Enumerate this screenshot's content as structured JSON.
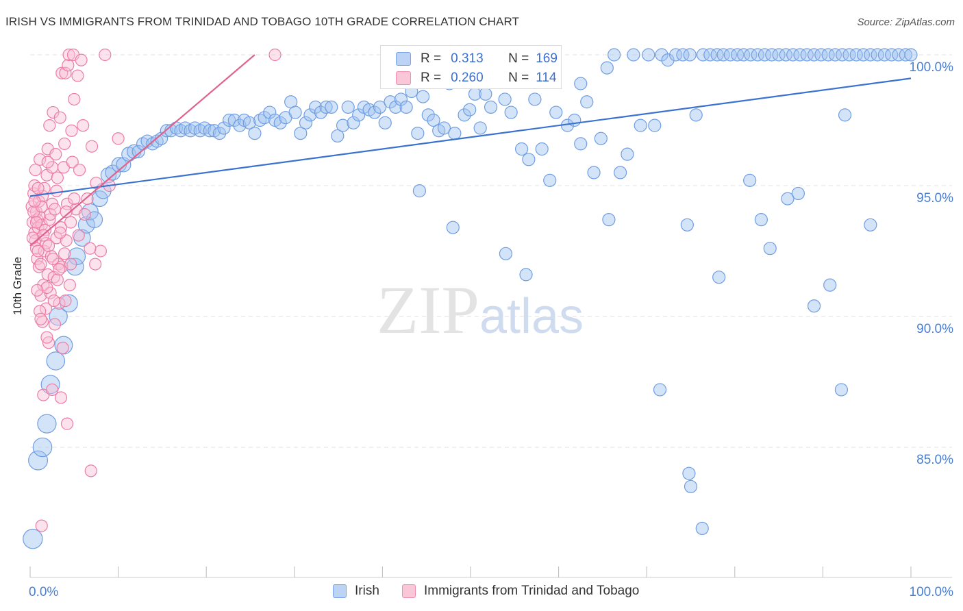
{
  "header": {
    "title": "IRISH VS IMMIGRANTS FROM TRINIDAD AND TOBAGO 10TH GRADE CORRELATION CHART",
    "source": "Source: ZipAtlas.com"
  },
  "watermark": {
    "zip": "ZIP",
    "atlas": "atlas"
  },
  "legend_box": {
    "rows": [
      {
        "r_label": "R =",
        "r_value": "0.313",
        "n_label": "N =",
        "n_value": "169",
        "color": "#7aa6e6",
        "fill": "#bcd3f5"
      },
      {
        "r_label": "R =",
        "r_value": "0.260",
        "n_label": "N =",
        "n_value": "114",
        "color": "#f08fb0",
        "fill": "#f9c7d8"
      }
    ]
  },
  "legend_bottom": {
    "items": [
      {
        "label": "Irish",
        "color": "#7aa6e6",
        "fill": "#bcd3f5"
      },
      {
        "label": "Immigrants from Trinidad and Tobago",
        "color": "#f08fb0",
        "fill": "#f9c7d8"
      }
    ]
  },
  "chart_data": {
    "type": "scatter",
    "title": "IRISH VS IMMIGRANTS FROM TRINIDAD AND TOBAGO 10TH GRADE CORRELATION CHART",
    "xlabel": "",
    "ylabel": "10th Grade",
    "xlim": [
      0,
      100
    ],
    "ylim": [
      80.5,
      101.5
    ],
    "x_tick_labels": [
      "0.0%",
      "100.0%"
    ],
    "y_ticks": [
      {
        "value": 100,
        "label": "100.0%"
      },
      {
        "value": 95,
        "label": "95.0%"
      },
      {
        "value": 90,
        "label": "90.0%"
      },
      {
        "value": 85,
        "label": "85.0%"
      }
    ],
    "series": [
      {
        "name": "Irish",
        "color": "#6f9de3",
        "fill": "rgba(160,195,240,0.45)",
        "trendline": {
          "x": [
            0,
            100
          ],
          "y": [
            94.6,
            99.1
          ]
        },
        "points": [
          [
            0.3,
            81.5
          ],
          [
            0.9,
            84.5
          ],
          [
            1.4,
            85.0
          ],
          [
            1.9,
            85.9
          ],
          [
            2.3,
            87.4
          ],
          [
            2.9,
            88.3
          ],
          [
            3.2,
            90.0
          ],
          [
            3.8,
            88.9
          ],
          [
            4.4,
            90.5
          ],
          [
            5.1,
            91.9
          ],
          [
            5.3,
            92.3
          ],
          [
            5.9,
            93.0
          ],
          [
            6.4,
            93.5
          ],
          [
            6.8,
            94.0
          ],
          [
            7.3,
            93.7
          ],
          [
            7.9,
            94.5
          ],
          [
            8.3,
            94.8
          ],
          [
            8.9,
            95.4
          ],
          [
            9.4,
            95.5
          ],
          [
            10.1,
            95.8
          ],
          [
            10.6,
            95.8
          ],
          [
            11.2,
            96.2
          ],
          [
            11.8,
            96.3
          ],
          [
            12.3,
            96.3
          ],
          [
            12.8,
            96.6
          ],
          [
            13.3,
            96.7
          ],
          [
            13.9,
            96.6
          ],
          [
            14.4,
            96.7
          ],
          [
            14.9,
            96.8
          ],
          [
            15.5,
            97.1
          ],
          [
            16.0,
            97.1
          ],
          [
            16.6,
            97.2
          ],
          [
            17.1,
            97.1
          ],
          [
            17.6,
            97.2
          ],
          [
            18.2,
            97.1
          ],
          [
            18.7,
            97.2
          ],
          [
            19.3,
            97.1
          ],
          [
            19.8,
            97.2
          ],
          [
            20.4,
            97.1
          ],
          [
            20.9,
            97.1
          ],
          [
            21.5,
            97.0
          ],
          [
            22.0,
            97.2
          ],
          [
            22.6,
            97.5
          ],
          [
            23.2,
            97.5
          ],
          [
            23.8,
            97.3
          ],
          [
            24.3,
            97.5
          ],
          [
            24.9,
            97.4
          ],
          [
            25.5,
            97.0
          ],
          [
            26.1,
            97.5
          ],
          [
            26.6,
            97.6
          ],
          [
            27.2,
            97.8
          ],
          [
            27.8,
            97.5
          ],
          [
            28.4,
            97.4
          ],
          [
            29.0,
            97.6
          ],
          [
            29.6,
            98.2
          ],
          [
            30.1,
            97.8
          ],
          [
            30.7,
            97.0
          ],
          [
            31.3,
            97.4
          ],
          [
            31.8,
            97.7
          ],
          [
            32.4,
            98.0
          ],
          [
            33.0,
            97.8
          ],
          [
            33.6,
            98.0
          ],
          [
            34.2,
            98.0
          ],
          [
            34.9,
            96.9
          ],
          [
            35.5,
            97.3
          ],
          [
            36.1,
            98.0
          ],
          [
            36.7,
            97.4
          ],
          [
            37.3,
            97.7
          ],
          [
            37.9,
            98.0
          ],
          [
            38.5,
            97.9
          ],
          [
            39.1,
            97.8
          ],
          [
            39.7,
            98.0
          ],
          [
            40.3,
            97.4
          ],
          [
            40.9,
            98.2
          ],
          [
            41.5,
            98.0
          ],
          [
            42.1,
            98.3
          ],
          [
            42.7,
            98.0
          ],
          [
            43.3,
            98.6
          ],
          [
            44.0,
            97.0
          ],
          [
            44.6,
            98.4
          ],
          [
            45.2,
            97.7
          ],
          [
            45.8,
            97.5
          ],
          [
            46.4,
            97.1
          ],
          [
            47.0,
            97.2
          ],
          [
            47.6,
            98.9
          ],
          [
            48.2,
            97.0
          ],
          [
            49.3,
            97.7
          ],
          [
            49.9,
            97.9
          ],
          [
            50.5,
            98.5
          ],
          [
            51.1,
            97.2
          ],
          [
            51.7,
            98.5
          ],
          [
            52.3,
            98.0
          ],
          [
            53.1,
            99.5
          ],
          [
            53.9,
            98.3
          ],
          [
            54.6,
            97.8
          ],
          [
            55.2,
            99.5
          ],
          [
            55.8,
            96.4
          ],
          [
            56.6,
            96.0
          ],
          [
            57.3,
            98.3
          ],
          [
            58.1,
            96.4
          ],
          [
            59.0,
            95.2
          ],
          [
            59.7,
            97.8
          ],
          [
            61.0,
            97.3
          ],
          [
            61.8,
            97.5
          ],
          [
            62.5,
            96.6
          ],
          [
            63.2,
            98.2
          ],
          [
            64.0,
            95.5
          ],
          [
            64.8,
            96.8
          ],
          [
            65.5,
            99.5
          ],
          [
            66.3,
            100.0
          ],
          [
            67.0,
            95.5
          ],
          [
            67.8,
            96.2
          ],
          [
            68.5,
            100.0
          ],
          [
            69.3,
            97.3
          ],
          [
            70.2,
            100.0
          ],
          [
            70.9,
            97.3
          ],
          [
            71.7,
            100.0
          ],
          [
            72.4,
            99.8
          ],
          [
            73.3,
            100.0
          ],
          [
            74.1,
            100.0
          ],
          [
            74.9,
            100.0
          ],
          [
            75.6,
            97.7
          ],
          [
            76.4,
            100.0
          ],
          [
            77.2,
            100.0
          ],
          [
            78.0,
            100.0
          ],
          [
            78.7,
            100.0
          ],
          [
            79.5,
            100.0
          ],
          [
            80.3,
            100.0
          ],
          [
            81.0,
            100.0
          ],
          [
            81.8,
            100.0
          ],
          [
            82.6,
            100.0
          ],
          [
            83.4,
            100.0
          ],
          [
            84.2,
            100.0
          ],
          [
            85.0,
            100.0
          ],
          [
            85.8,
            100.0
          ],
          [
            86.6,
            100.0
          ],
          [
            87.4,
            100.0
          ],
          [
            88.2,
            100.0
          ],
          [
            89.0,
            100.0
          ],
          [
            89.8,
            100.0
          ],
          [
            90.6,
            100.0
          ],
          [
            91.4,
            100.0
          ],
          [
            92.2,
            100.0
          ],
          [
            93.0,
            100.0
          ],
          [
            93.8,
            100.0
          ],
          [
            94.6,
            100.0
          ],
          [
            95.4,
            100.0
          ],
          [
            96.2,
            100.0
          ],
          [
            97.0,
            100.0
          ],
          [
            97.8,
            100.0
          ],
          [
            98.6,
            100.0
          ],
          [
            99.4,
            100.0
          ],
          [
            100.0,
            100.0
          ],
          [
            62.5,
            98.9
          ],
          [
            54.0,
            92.4
          ],
          [
            48.0,
            93.4
          ],
          [
            44.2,
            94.8
          ],
          [
            71.5,
            87.2
          ],
          [
            74.8,
            84.0
          ],
          [
            76.3,
            81.9
          ],
          [
            75.0,
            83.5
          ],
          [
            92.5,
            97.7
          ],
          [
            56.3,
            91.6
          ],
          [
            65.7,
            93.7
          ],
          [
            74.6,
            93.5
          ],
          [
            78.2,
            91.5
          ],
          [
            81.7,
            95.2
          ],
          [
            83.0,
            93.7
          ],
          [
            84.0,
            92.6
          ],
          [
            86.0,
            94.5
          ],
          [
            87.2,
            94.7
          ],
          [
            89.0,
            90.4
          ],
          [
            90.8,
            91.2
          ],
          [
            92.1,
            87.2
          ],
          [
            95.4,
            93.5
          ]
        ]
      },
      {
        "name": "Immigrants from Trinidad and Tobago",
        "color": "#ec7ca5",
        "fill": "rgba(248,190,212,0.45)",
        "trendline": {
          "x": [
            0,
            25.5
          ],
          "y": [
            92.7,
            100.0
          ]
        },
        "points": [
          [
            0.2,
            94.2
          ],
          [
            0.3,
            93.6
          ],
          [
            0.4,
            94.7
          ],
          [
            0.5,
            95.0
          ],
          [
            0.5,
            93.2
          ],
          [
            0.6,
            92.9
          ],
          [
            0.7,
            94.0
          ],
          [
            0.7,
            92.6
          ],
          [
            0.8,
            93.7
          ],
          [
            0.8,
            92.2
          ],
          [
            0.9,
            93.4
          ],
          [
            1.0,
            91.9
          ],
          [
            1.0,
            94.4
          ],
          [
            1.1,
            93.8
          ],
          [
            1.2,
            92.0
          ],
          [
            1.2,
            90.8
          ],
          [
            1.3,
            93.5
          ],
          [
            1.4,
            94.6
          ],
          [
            1.4,
            89.8
          ],
          [
            1.5,
            91.2
          ],
          [
            1.6,
            92.5
          ],
          [
            1.6,
            94.9
          ],
          [
            1.7,
            93.3
          ],
          [
            1.8,
            90.3
          ],
          [
            1.8,
            92.8
          ],
          [
            1.9,
            95.4
          ],
          [
            2.0,
            96.4
          ],
          [
            2.0,
            91.6
          ],
          [
            2.1,
            89.0
          ],
          [
            2.2,
            93.7
          ],
          [
            2.2,
            97.3
          ],
          [
            2.3,
            90.9
          ],
          [
            2.4,
            92.3
          ],
          [
            2.5,
            95.7
          ],
          [
            2.5,
            94.3
          ],
          [
            2.6,
            97.8
          ],
          [
            2.7,
            91.5
          ],
          [
            2.8,
            89.7
          ],
          [
            2.9,
            96.2
          ],
          [
            3.0,
            93.0
          ],
          [
            3.0,
            94.8
          ],
          [
            3.1,
            95.3
          ],
          [
            3.2,
            92.0
          ],
          [
            3.3,
            90.5
          ],
          [
            3.4,
            97.6
          ],
          [
            3.5,
            93.4
          ],
          [
            3.6,
            99.3
          ],
          [
            3.7,
            88.8
          ],
          [
            3.8,
            95.7
          ],
          [
            3.9,
            96.6
          ],
          [
            4.0,
            99.3
          ],
          [
            4.1,
            92.9
          ],
          [
            4.2,
            94.3
          ],
          [
            4.3,
            99.6
          ],
          [
            4.4,
            100.0
          ],
          [
            4.5,
            91.2
          ],
          [
            4.6,
            93.6
          ],
          [
            4.7,
            97.1
          ],
          [
            4.8,
            95.9
          ],
          [
            4.9,
            100.0
          ],
          [
            5.0,
            98.3
          ],
          [
            5.2,
            94.1
          ],
          [
            5.4,
            99.2
          ],
          [
            5.6,
            95.6
          ],
          [
            5.8,
            99.8
          ],
          [
            6.0,
            97.3
          ],
          [
            6.5,
            94.5
          ],
          [
            7.0,
            96.5
          ],
          [
            7.5,
            95.1
          ],
          [
            8.0,
            92.5
          ],
          [
            8.5,
            100.0
          ],
          [
            9.0,
            95.0
          ],
          [
            10.0,
            96.8
          ],
          [
            27.8,
            100.0
          ],
          [
            1.5,
            87.0
          ],
          [
            2.5,
            87.2
          ],
          [
            3.5,
            86.9
          ],
          [
            4.2,
            85.9
          ],
          [
            6.9,
            84.1
          ],
          [
            1.3,
            82.0
          ],
          [
            0.4,
            94.0
          ],
          [
            0.6,
            95.6
          ],
          [
            0.9,
            92.5
          ],
          [
            1.1,
            90.2
          ],
          [
            1.3,
            94.2
          ],
          [
            1.5,
            93.1
          ],
          [
            1.9,
            91.1
          ],
          [
            2.1,
            92.7
          ],
          [
            2.3,
            93.9
          ],
          [
            2.6,
            92.2
          ],
          [
            2.8,
            94.1
          ],
          [
            3.1,
            91.4
          ],
          [
            3.4,
            93.2
          ],
          [
            3.6,
            91.9
          ],
          [
            3.9,
            92.4
          ],
          [
            4.1,
            94.0
          ],
          [
            4.6,
            92.0
          ],
          [
            5.0,
            94.5
          ],
          [
            5.5,
            93.1
          ],
          [
            6.2,
            93.9
          ],
          [
            6.8,
            92.6
          ],
          [
            7.4,
            92.0
          ],
          [
            0.8,
            91.0
          ],
          [
            1.2,
            89.9
          ],
          [
            1.9,
            89.2
          ],
          [
            2.7,
            90.6
          ],
          [
            3.3,
            91.8
          ],
          [
            4.0,
            90.6
          ],
          [
            0.3,
            93.0
          ],
          [
            0.5,
            94.4
          ],
          [
            0.7,
            93.6
          ],
          [
            0.9,
            94.9
          ],
          [
            1.1,
            96.0
          ],
          [
            2.0,
            95.9
          ]
        ]
      }
    ]
  }
}
